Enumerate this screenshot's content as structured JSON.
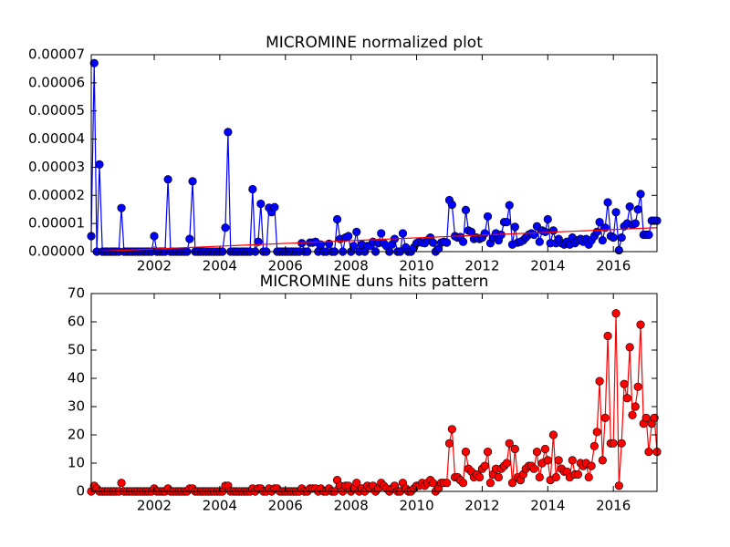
{
  "chart_data": [
    {
      "type": "line",
      "title": "MICROMINE normalized plot",
      "xlim": [
        2000.08,
        2017.33
      ],
      "xticks": [
        2002,
        2004,
        2006,
        2008,
        2010,
        2012,
        2014,
        2016
      ],
      "ylim": [
        0,
        7e-05
      ],
      "yticks": [
        {
          "value": 0,
          "label": "0.00000"
        },
        1e-05,
        2e-05,
        3e-05,
        4e-05,
        5e-05,
        6e-05,
        7e-05
      ],
      "x": [
        2000.08,
        2000.17,
        2000.25,
        2000.33,
        2000.42,
        2000.5,
        2000.58,
        2000.67,
        2000.75,
        2000.83,
        2000.92,
        2001,
        2001.08,
        2001.17,
        2001.25,
        2001.33,
        2001.42,
        2001.5,
        2001.58,
        2001.67,
        2001.75,
        2001.83,
        2001.92,
        2002,
        2002.08,
        2002.17,
        2002.25,
        2002.33,
        2002.42,
        2002.5,
        2002.58,
        2002.67,
        2002.75,
        2002.83,
        2002.92,
        2003,
        2003.08,
        2003.17,
        2003.25,
        2003.33,
        2003.42,
        2003.5,
        2003.58,
        2003.67,
        2003.75,
        2003.83,
        2003.92,
        2004,
        2004.08,
        2004.17,
        2004.25,
        2004.33,
        2004.42,
        2004.5,
        2004.58,
        2004.67,
        2004.75,
        2004.83,
        2004.92,
        2005,
        2005.08,
        2005.17,
        2005.25,
        2005.33,
        2005.42,
        2005.5,
        2005.58,
        2005.67,
        2005.75,
        2005.83,
        2005.92,
        2006,
        2006.08,
        2006.17,
        2006.25,
        2006.33,
        2006.42,
        2006.5,
        2006.58,
        2006.67,
        2006.75,
        2006.83,
        2006.92,
        2007,
        2007.08,
        2007.17,
        2007.25,
        2007.33,
        2007.42,
        2007.5,
        2007.58,
        2007.67,
        2007.75,
        2007.83,
        2007.92,
        2008,
        2008.08,
        2008.17,
        2008.25,
        2008.33,
        2008.42,
        2008.5,
        2008.58,
        2008.67,
        2008.75,
        2008.83,
        2008.92,
        2009,
        2009.08,
        2009.17,
        2009.25,
        2009.33,
        2009.42,
        2009.5,
        2009.58,
        2009.67,
        2009.75,
        2009.83,
        2009.92,
        2010,
        2010.08,
        2010.17,
        2010.25,
        2010.33,
        2010.42,
        2010.5,
        2010.58,
        2010.67,
        2010.75,
        2010.83,
        2010.92,
        2011,
        2011.08,
        2011.17,
        2011.25,
        2011.33,
        2011.42,
        2011.5,
        2011.58,
        2011.67,
        2011.75,
        2011.83,
        2011.92,
        2012,
        2012.08,
        2012.17,
        2012.25,
        2012.33,
        2012.42,
        2012.5,
        2012.58,
        2012.67,
        2012.75,
        2012.83,
        2012.92,
        2013,
        2013.08,
        2013.17,
        2013.25,
        2013.33,
        2013.42,
        2013.5,
        2013.58,
        2013.67,
        2013.75,
        2013.83,
        2013.92,
        2014,
        2014.08,
        2014.17,
        2014.25,
        2014.33,
        2014.42,
        2014.5,
        2014.58,
        2014.67,
        2014.75,
        2014.83,
        2014.92,
        2015,
        2015.08,
        2015.17,
        2015.25,
        2015.33,
        2015.42,
        2015.5,
        2015.58,
        2015.67,
        2015.75,
        2015.83,
        2015.92,
        2016,
        2016.08,
        2016.17,
        2016.25,
        2016.33,
        2016.42,
        2016.5,
        2016.58,
        2016.67,
        2016.75,
        2016.83,
        2016.92,
        2017,
        2017.08,
        2017.17,
        2017.25,
        2017.33
      ],
      "series": [
        {
          "color": "#0000ff",
          "marker": true,
          "values": [
            5.5e-06,
            6.7e-05,
            0,
            3.1e-05,
            0,
            0,
            0,
            0,
            0,
            0,
            0,
            1.55e-05,
            0,
            0,
            0,
            0,
            0,
            0,
            0,
            0,
            0,
            0,
            0,
            5.5e-06,
            0,
            0,
            0,
            0,
            2.57e-05,
            0,
            0,
            0,
            0,
            0,
            0,
            0,
            4.5e-06,
            2.5e-05,
            0,
            0,
            0,
            0,
            0,
            0,
            0,
            0,
            0,
            0,
            0,
            8.5e-06,
            4.25e-05,
            0,
            0,
            0,
            0,
            0,
            0,
            0,
            0,
            2.22e-05,
            0,
            3.5e-06,
            1.7e-05,
            0,
            0,
            1.56e-05,
            1.4e-05,
            1.58e-05,
            0,
            0,
            0,
            0,
            0,
            0,
            0,
            0,
            0,
            3e-06,
            0,
            0,
            3.2e-06,
            3.2e-06,
            3.5e-06,
            0,
            2.5e-06,
            0,
            0,
            2.8e-06,
            0,
            0,
            1.15e-05,
            4.5e-06,
            0,
            5e-06,
            5.5e-06,
            0,
            2e-06,
            7e-06,
            0,
            2.5e-06,
            0,
            2e-06,
            2e-06,
            3.5e-06,
            0,
            3e-06,
            6.5e-06,
            3e-06,
            2e-06,
            0,
            2.5e-06,
            4.5e-06,
            0,
            0,
            6.5e-06,
            1.5e-06,
            0,
            0,
            1.5e-06,
            3e-06,
            3.5e-06,
            3.2e-06,
            3e-06,
            4e-06,
            5e-06,
            3.2e-06,
            0,
            1e-06,
            3.2e-06,
            3.5e-06,
            3.2e-06,
            1.83e-05,
            1.67e-05,
            5.5e-06,
            5e-06,
            5.2e-06,
            3.5e-06,
            1.48e-05,
            7.5e-06,
            7e-06,
            4.5e-06,
            5e-06,
            4.5e-06,
            5e-06,
            6.5e-06,
            1.25e-05,
            3e-06,
            5e-06,
            6.5e-06,
            4e-06,
            6e-06,
            1.05e-05,
            1.05e-05,
            1.65e-05,
            2.5e-06,
            8.8e-06,
            3.2e-06,
            3.5e-06,
            4e-06,
            5e-06,
            6e-06,
            6.5e-06,
            6e-06,
            9e-06,
            3.5e-06,
            7.5e-06,
            7e-06,
            1.15e-05,
            3e-06,
            7.5e-06,
            3e-06,
            4.5e-06,
            3e-06,
            2.5e-06,
            3.5e-06,
            2.5e-06,
            5e-06,
            3e-06,
            4e-06,
            4.5e-06,
            3.5e-06,
            4.5e-06,
            2.5e-06,
            4e-06,
            5.5e-06,
            7e-06,
            1.05e-05,
            4e-06,
            8.5e-06,
            1.75e-05,
            5.5e-06,
            5e-06,
            1.4e-05,
            5e-07,
            5e-06,
            9e-06,
            1e-05,
            1.6e-05,
            9.5e-06,
            1e-05,
            1.5e-05,
            2.05e-05,
            6e-06,
            6e-06,
            6e-06,
            1.1e-05,
            1.1e-05,
            1.1e-05
          ]
        },
        {
          "color": "#ff0000",
          "marker": false,
          "x": [
            2000.08,
            2017.33
          ],
          "values": [
            0,
            8.5e-06
          ]
        }
      ]
    },
    {
      "type": "line",
      "title": "MICROMINE duns hits pattern",
      "xlim": [
        2000.08,
        2017.33
      ],
      "xticks": [
        2002,
        2004,
        2006,
        2008,
        2010,
        2012,
        2014,
        2016
      ],
      "ylim": [
        0,
        70
      ],
      "yticks": [
        0,
        10,
        20,
        30,
        40,
        50,
        60,
        70
      ],
      "x": [
        2000.08,
        2000.17,
        2000.25,
        2000.33,
        2000.42,
        2000.5,
        2000.58,
        2000.67,
        2000.75,
        2000.83,
        2000.92,
        2001,
        2001.08,
        2001.17,
        2001.25,
        2001.33,
        2001.42,
        2001.5,
        2001.58,
        2001.67,
        2001.75,
        2001.83,
        2001.92,
        2002,
        2002.08,
        2002.17,
        2002.25,
        2002.33,
        2002.42,
        2002.5,
        2002.58,
        2002.67,
        2002.75,
        2002.83,
        2002.92,
        2003,
        2003.08,
        2003.17,
        2003.25,
        2003.33,
        2003.42,
        2003.5,
        2003.58,
        2003.67,
        2003.75,
        2003.83,
        2003.92,
        2004,
        2004.08,
        2004.17,
        2004.25,
        2004.33,
        2004.42,
        2004.5,
        2004.58,
        2004.67,
        2004.75,
        2004.83,
        2004.92,
        2005,
        2005.08,
        2005.17,
        2005.25,
        2005.33,
        2005.42,
        2005.5,
        2005.58,
        2005.67,
        2005.75,
        2005.83,
        2005.92,
        2006,
        2006.08,
        2006.17,
        2006.25,
        2006.33,
        2006.42,
        2006.5,
        2006.58,
        2006.67,
        2006.75,
        2006.83,
        2006.92,
        2007,
        2007.08,
        2007.17,
        2007.25,
        2007.33,
        2007.42,
        2007.5,
        2007.58,
        2007.67,
        2007.75,
        2007.83,
        2007.92,
        2008,
        2008.08,
        2008.17,
        2008.25,
        2008.33,
        2008.42,
        2008.5,
        2008.58,
        2008.67,
        2008.75,
        2008.83,
        2008.92,
        2009,
        2009.08,
        2009.17,
        2009.25,
        2009.33,
        2009.42,
        2009.5,
        2009.58,
        2009.67,
        2009.75,
        2009.83,
        2009.92,
        2010,
        2010.08,
        2010.17,
        2010.25,
        2010.33,
        2010.42,
        2010.5,
        2010.58,
        2010.67,
        2010.75,
        2010.83,
        2010.92,
        2011,
        2011.08,
        2011.17,
        2011.25,
        2011.33,
        2011.42,
        2011.5,
        2011.58,
        2011.67,
        2011.75,
        2011.83,
        2011.92,
        2012,
        2012.08,
        2012.17,
        2012.25,
        2012.33,
        2012.42,
        2012.5,
        2012.58,
        2012.67,
        2012.75,
        2012.83,
        2012.92,
        2013,
        2013.08,
        2013.17,
        2013.25,
        2013.33,
        2013.42,
        2013.5,
        2013.58,
        2013.67,
        2013.75,
        2013.83,
        2013.92,
        2014,
        2014.08,
        2014.17,
        2014.25,
        2014.33,
        2014.42,
        2014.5,
        2014.58,
        2014.67,
        2014.75,
        2014.83,
        2014.92,
        2015,
        2015.08,
        2015.17,
        2015.25,
        2015.33,
        2015.42,
        2015.5,
        2015.58,
        2015.67,
        2015.75,
        2015.83,
        2015.92,
        2016,
        2016.08,
        2016.17,
        2016.25,
        2016.33,
        2016.42,
        2016.5,
        2016.58,
        2016.67,
        2016.75,
        2016.83,
        2016.92,
        2017,
        2017.08,
        2017.17,
        2017.25,
        2017.33
      ],
      "series": [
        {
          "color": "#ff0000",
          "marker": true,
          "values": [
            0,
            2,
            1,
            0,
            0,
            0,
            0,
            0,
            0,
            0,
            0,
            3,
            0,
            0,
            0,
            0,
            0,
            0,
            0,
            0,
            0,
            0,
            0,
            1,
            0,
            0,
            0,
            0,
            1,
            0,
            0,
            0,
            0,
            0,
            0,
            0,
            1,
            1,
            0,
            0,
            0,
            0,
            0,
            0,
            0,
            0,
            0,
            0,
            0,
            2,
            2,
            0,
            0,
            0,
            0,
            0,
            0,
            0,
            0,
            1,
            0,
            1,
            1,
            0,
            0,
            1,
            0,
            1,
            1,
            0,
            0,
            0,
            0,
            0,
            0,
            0,
            0,
            1,
            0,
            0,
            1,
            1,
            1,
            0,
            1,
            0,
            0,
            1,
            0,
            0,
            4,
            2,
            0,
            2,
            2,
            0,
            1,
            3,
            0,
            1,
            0,
            2,
            1,
            2,
            0,
            1,
            3,
            2,
            1,
            0,
            1,
            2,
            0,
            0,
            3,
            1,
            0,
            0,
            1,
            2,
            2,
            3,
            2,
            3,
            4,
            3,
            0,
            1,
            3,
            3,
            3,
            17,
            22,
            5,
            5,
            4,
            3,
            14,
            8,
            7,
            5,
            6,
            5,
            8,
            9,
            14,
            3,
            6,
            8,
            5,
            8,
            9,
            10,
            17,
            3,
            15,
            5,
            4,
            6,
            8,
            9,
            9,
            8,
            14,
            5,
            10,
            15,
            11,
            4,
            20,
            5,
            11,
            8,
            7,
            7,
            5,
            11,
            6,
            6,
            10,
            9,
            10,
            5,
            9,
            16,
            21,
            39,
            11,
            26,
            55,
            17,
            17,
            63,
            2,
            17,
            38,
            33,
            51,
            27,
            30,
            37,
            59,
            24,
            26,
            14,
            24,
            26,
            14
          ]
        }
      ]
    }
  ]
}
